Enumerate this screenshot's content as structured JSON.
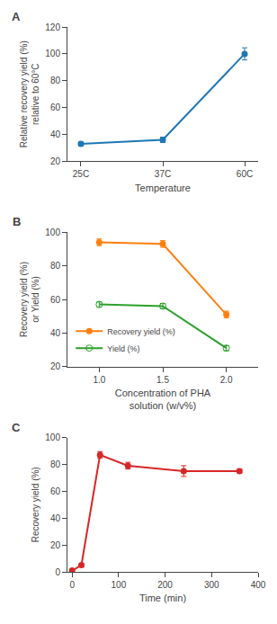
{
  "chart_data": [
    {
      "type": "line",
      "title": "A",
      "categories": [
        "25C",
        "37C",
        "60C"
      ],
      "series": [
        {
          "values": [
            33,
            36,
            100
          ],
          "errors": [
            1.5,
            2.0,
            4.5
          ],
          "marker": "circle"
        }
      ],
      "xlabel": "Temperature",
      "ylabel": "Relative recovery yield (%)\nrelative to 60°C",
      "ylim": [
        20,
        120
      ],
      "yticks": [
        20,
        40,
        60,
        80,
        100,
        120
      ],
      "grid": false
    },
    {
      "type": "line",
      "title": "B",
      "x": [
        1.0,
        1.5,
        2.0
      ],
      "series": [
        {
          "name": "Recovery yield (%)",
          "values": [
            94,
            93,
            51
          ],
          "errors": [
            2.0,
            2.0,
            2.0
          ],
          "marker": "circle"
        },
        {
          "name": "Yield (%)",
          "values": [
            57,
            56,
            31
          ],
          "errors": [
            1.5,
            1.5,
            1.5
          ],
          "marker": "circle-open"
        }
      ],
      "xlabel": "Concentration of PHA\nsolution (w/v%)",
      "ylabel": "Recovery yield (%)\nor Yield (%)",
      "xlim": [
        0.75,
        2.25
      ],
      "xticks": [
        {
          "value": 1.0,
          "label": "1.0"
        },
        {
          "value": 1.5,
          "label": "1.5"
        },
        {
          "value": 2.0,
          "label": "2.0"
        }
      ],
      "ylim": [
        20,
        100
      ],
      "yticks": [
        20,
        40,
        60,
        80,
        100
      ],
      "legend": "lower left",
      "grid": false
    },
    {
      "type": "line",
      "title": "C",
      "x": [
        0,
        20,
        60,
        120,
        240,
        360
      ],
      "series": [
        {
          "values": [
            1,
            5,
            87,
            79,
            75,
            75
          ],
          "errors": [
            0.5,
            1.0,
            2.5,
            2.5,
            4.0,
            1.5
          ],
          "marker": "circle"
        }
      ],
      "xlabel": "Time (min)",
      "ylabel": "Recovery yield (%)",
      "xlim": [
        -10,
        400
      ],
      "xticks": [
        0,
        100,
        200,
        300,
        400
      ],
      "ylim": [
        0,
        100
      ],
      "yticks": [
        0,
        20,
        40,
        60,
        80,
        100
      ],
      "grid": false
    }
  ]
}
